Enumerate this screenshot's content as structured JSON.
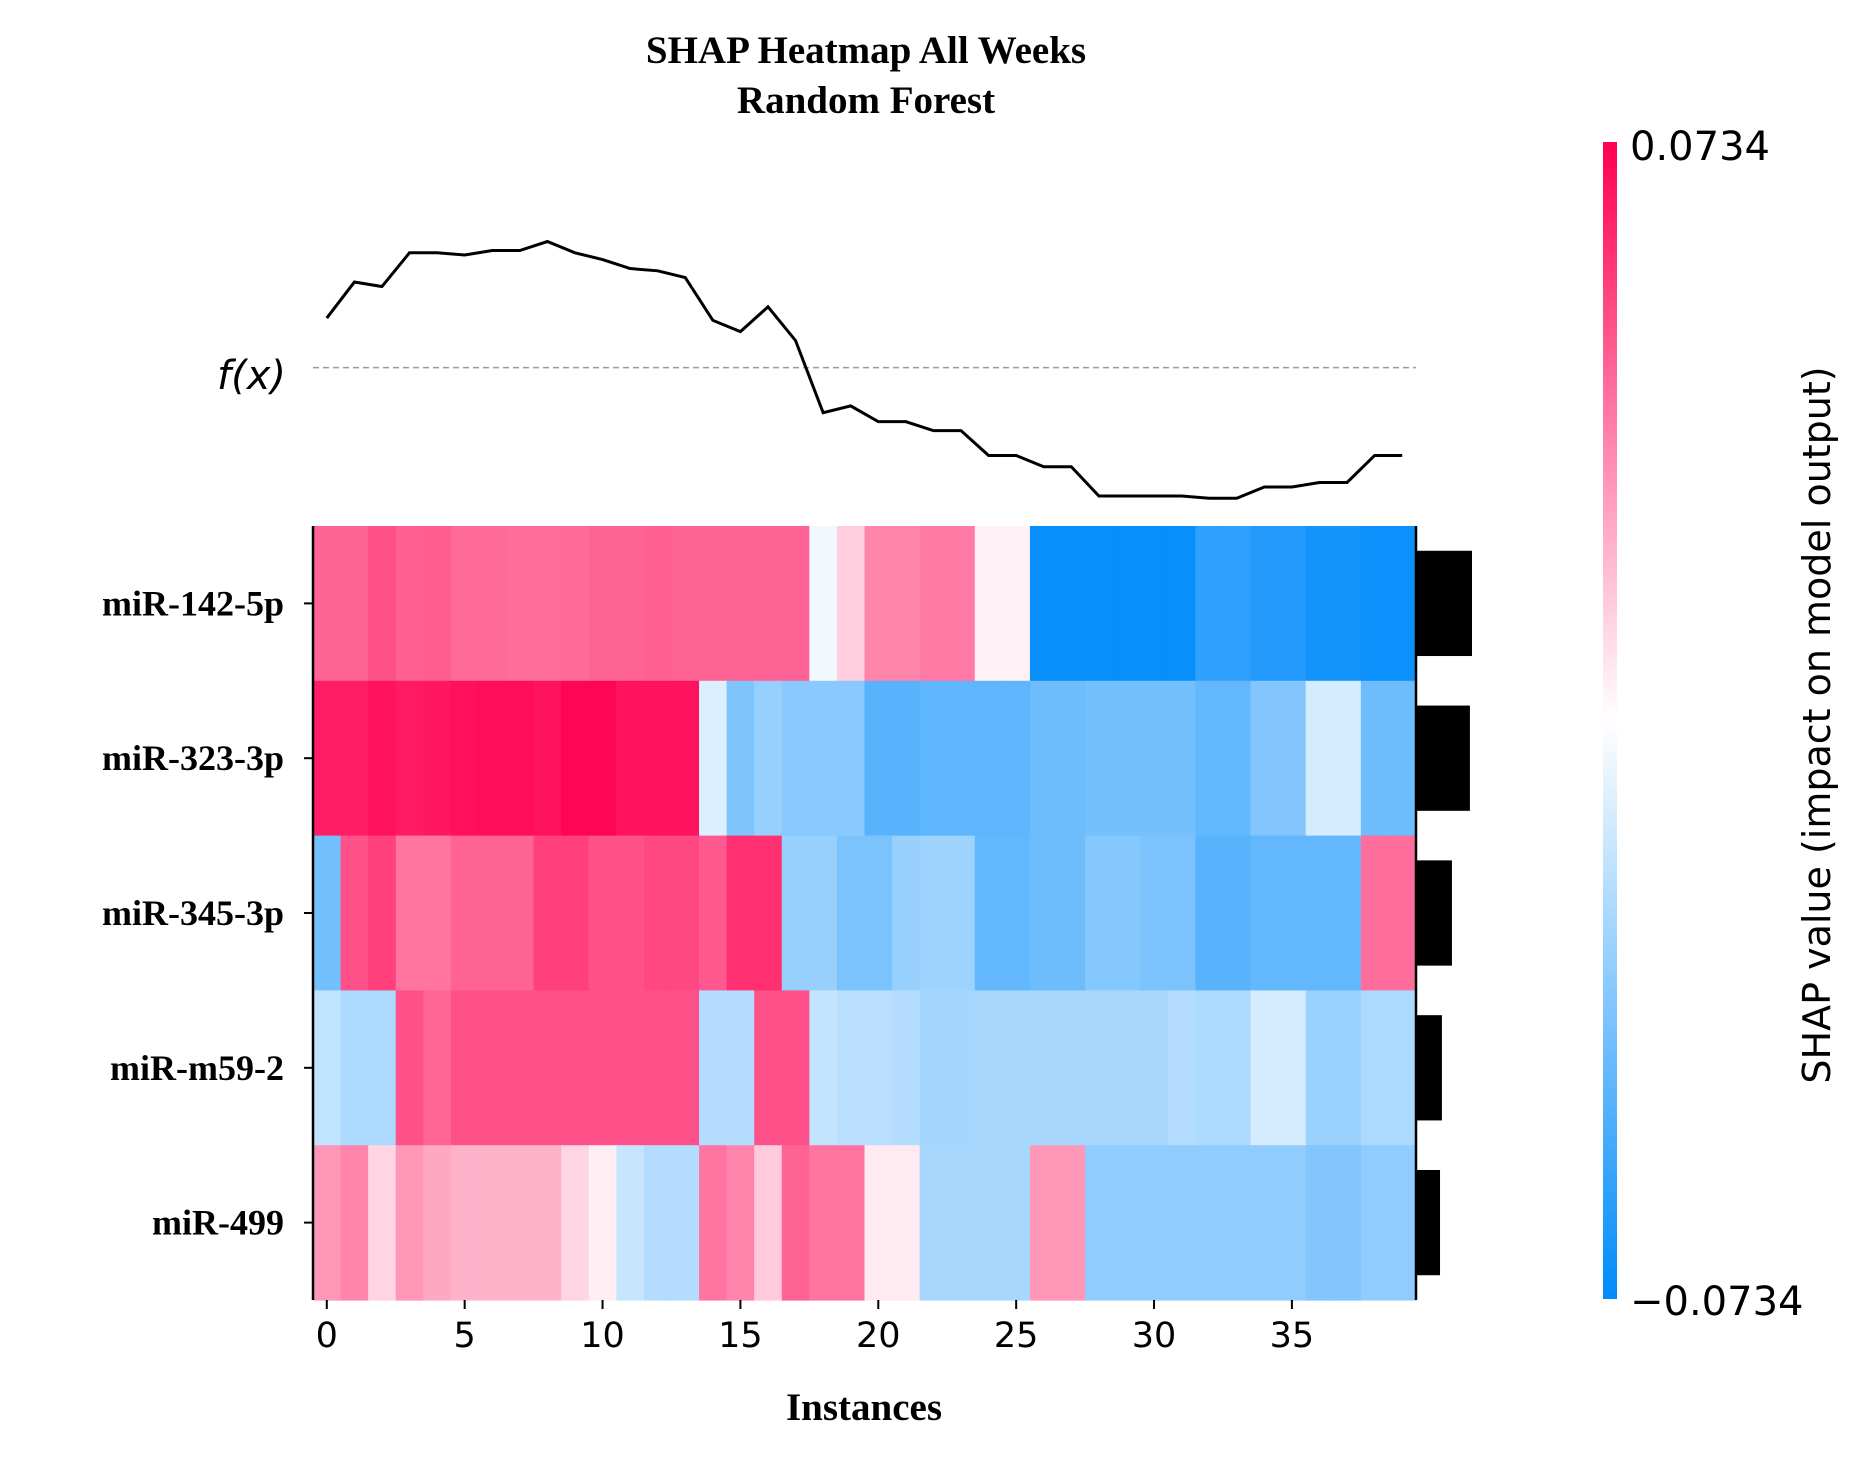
{
  "chart_data": {
    "type": "heatmap",
    "title": "SHAP Heatmap All Weeks",
    "subtitle": "Random Forest",
    "xlabel": "Instances",
    "x_ticks": [
      0,
      5,
      10,
      15,
      20,
      25,
      30,
      35
    ],
    "x_range": [
      -0.5,
      39.5
    ],
    "f_label": "f(x)",
    "colorbar": {
      "max_label": "0.0734",
      "min_label": "−0.0734",
      "label": "SHAP value (impact on model output)",
      "vmin": -0.0734,
      "vmax": 0.0734,
      "color_high": "#ff0052",
      "color_mid": "#ffffff",
      "color_low": "#008bfb"
    },
    "features": [
      "miR-142-5p",
      "miR-323-3p",
      "miR-345-3p",
      "miR-m59-2",
      "miR-499"
    ],
    "feature_importance": [
      0.0268,
      0.0258,
      0.0172,
      0.0124,
      0.0115
    ],
    "values": [
      [
        0.045,
        0.045,
        0.05,
        0.046,
        0.047,
        0.043,
        0.043,
        0.042,
        0.042,
        0.043,
        0.045,
        0.045,
        0.046,
        0.045,
        0.045,
        0.045,
        0.045,
        0.045,
        -0.004,
        0.014,
        0.035,
        0.035,
        0.038,
        0.038,
        0.004,
        0.004,
        -0.071,
        -0.071,
        -0.071,
        -0.071,
        -0.071,
        -0.071,
        -0.06,
        -0.06,
        -0.063,
        -0.063,
        -0.068,
        -0.068,
        -0.07,
        -0.07
      ],
      [
        0.065,
        0.065,
        0.068,
        0.066,
        0.067,
        0.069,
        0.07,
        0.07,
        0.068,
        0.072,
        0.072,
        0.068,
        0.068,
        0.068,
        -0.01,
        -0.037,
        -0.03,
        -0.034,
        -0.034,
        -0.034,
        -0.048,
        -0.048,
        -0.046,
        -0.046,
        -0.046,
        -0.046,
        -0.042,
        -0.042,
        -0.04,
        -0.04,
        -0.04,
        -0.04,
        -0.045,
        -0.045,
        -0.036,
        -0.036,
        -0.012,
        -0.012,
        -0.042,
        -0.042
      ],
      [
        -0.04,
        0.05,
        0.055,
        0.04,
        0.04,
        0.045,
        0.045,
        0.045,
        0.055,
        0.055,
        0.05,
        0.05,
        0.053,
        0.053,
        0.048,
        0.06,
        0.06,
        -0.03,
        -0.03,
        -0.038,
        -0.038,
        -0.03,
        -0.028,
        -0.028,
        -0.045,
        -0.045,
        -0.042,
        -0.042,
        -0.035,
        -0.035,
        -0.038,
        -0.038,
        -0.048,
        -0.048,
        -0.045,
        -0.045,
        -0.045,
        -0.045,
        0.042,
        0.042
      ],
      [
        -0.018,
        -0.024,
        -0.024,
        0.05,
        0.044,
        0.05,
        0.05,
        0.05,
        0.05,
        0.05,
        0.05,
        0.05,
        0.05,
        0.05,
        -0.022,
        -0.022,
        0.05,
        0.05,
        -0.017,
        -0.02,
        -0.02,
        -0.022,
        -0.026,
        -0.026,
        -0.025,
        -0.025,
        -0.025,
        -0.025,
        -0.025,
        -0.025,
        -0.025,
        -0.022,
        -0.024,
        -0.024,
        -0.012,
        -0.012,
        -0.029,
        -0.029,
        -0.024,
        -0.024
      ],
      [
        0.03,
        0.035,
        0.012,
        0.03,
        0.025,
        0.022,
        0.022,
        0.022,
        0.022,
        0.012,
        0.005,
        -0.016,
        -0.022,
        -0.022,
        0.04,
        0.035,
        0.015,
        0.045,
        0.04,
        0.04,
        0.006,
        0.006,
        -0.025,
        -0.025,
        -0.025,
        -0.025,
        0.03,
        0.03,
        -0.032,
        -0.032,
        -0.032,
        -0.032,
        -0.032,
        -0.032,
        -0.032,
        -0.032,
        -0.036,
        -0.036,
        -0.032,
        -0.032
      ]
    ],
    "f_series": [
      0.082,
      0.098,
      0.096,
      0.111,
      0.111,
      0.11,
      0.112,
      0.112,
      0.116,
      0.111,
      0.108,
      0.104,
      0.103,
      0.1,
      0.081,
      0.076,
      0.087,
      0.072,
      0.04,
      0.043,
      0.036,
      0.036,
      0.032,
      0.032,
      0.021,
      0.021,
      0.016,
      0.016,
      0.003,
      0.003,
      0.003,
      0.003,
      0.002,
      0.002,
      0.007,
      0.007,
      0.009,
      0.009,
      0.021,
      0.021
    ],
    "f_baseline": 0.06,
    "f_range": [
      -0.005,
      0.13
    ]
  }
}
